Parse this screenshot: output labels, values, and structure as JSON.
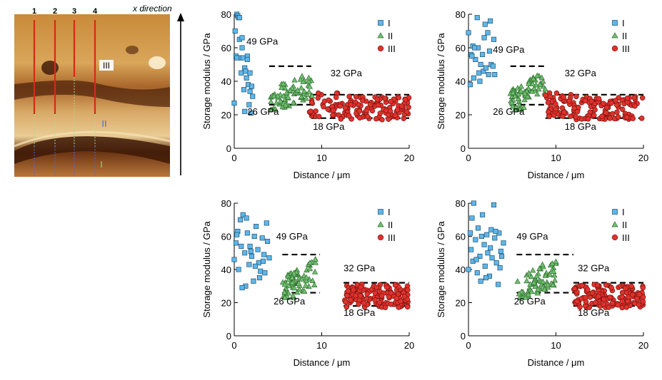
{
  "afm": {
    "direction_label": "x direction",
    "lines": [
      "1",
      "2",
      "3",
      "4"
    ],
    "regions": [
      "III",
      "II",
      "I"
    ],
    "colors": {
      "line": "#d42a1a",
      "region_I": "#7fe07f",
      "region_II": "#3f6fd8",
      "region_III": "#ffffff"
    }
  },
  "shared": {
    "xlabel": "Distance / μm",
    "ylabel": "Storage modulus / GPa",
    "xlim": [
      0,
      20
    ],
    "ylim": [
      0,
      80
    ],
    "xticks": [
      "0",
      "10",
      "20"
    ],
    "yticks": [
      "0",
      "20",
      "40",
      "60",
      "80"
    ],
    "legend": [
      "I",
      "II",
      "III"
    ],
    "colors": {
      "I": "#5fb6e8",
      "II": "#6fc06f",
      "III": "#e0322c"
    }
  },
  "chart_data": [
    {
      "type": "scatter",
      "panel": "top-left",
      "xlabel": "Distance / μm",
      "ylabel": "Storage modulus / GPa",
      "xlim": [
        0,
        20
      ],
      "ylim": [
        0,
        80
      ],
      "legend": [
        "I",
        "II",
        "III"
      ],
      "series": [
        {
          "name": "I",
          "marker": "square",
          "range": [
            0,
            2
          ],
          "x": [
            0.0,
            0.1,
            0.2,
            0.3,
            0.4,
            0.5,
            0.6,
            0.7,
            0.8,
            0.9,
            1.0,
            1.1,
            1.2,
            1.3,
            1.4,
            1.5,
            1.6,
            1.7,
            1.8,
            1.9,
            2.0,
            2.1,
            0.3,
            0.6,
            0.9,
            1.2,
            1.5,
            1.8
          ],
          "y": [
            27,
            70,
            55,
            80,
            79,
            78,
            65,
            54,
            45,
            60,
            54,
            35,
            48,
            46,
            42,
            55,
            38,
            26,
            34,
            21,
            37,
            31,
            54,
            78,
            66,
            22,
            53,
            45
          ]
        },
        {
          "name": "II",
          "marker": "triangle",
          "range": [
            4,
            9
          ],
          "x": [],
          "y": []
        },
        {
          "name": "III",
          "marker": "circle",
          "range": [
            8.6,
            20
          ],
          "x": [],
          "y": []
        }
      ],
      "annotations": [
        "49 GPa",
        "32 GPa",
        "26 GPa",
        "18 GPa"
      ]
    },
    {
      "type": "scatter",
      "panel": "top-right",
      "xlabel": "Distance / μm",
      "ylabel": "Storage modulus / GPa",
      "xlim": [
        0,
        20
      ],
      "ylim": [
        0,
        80
      ],
      "legend": [
        "I",
        "II",
        "III"
      ],
      "series": [
        {
          "name": "I",
          "marker": "square",
          "range": [
            0,
            3
          ],
          "x": [
            0.0,
            0.2,
            0.3,
            0.5,
            0.6,
            0.8,
            1.0,
            1.1,
            1.3,
            1.4,
            1.6,
            1.7,
            1.9,
            2.0,
            2.2,
            2.3,
            2.5,
            2.6,
            2.8,
            3.0,
            0.7,
            1.2,
            1.8,
            2.4,
            2.9,
            0.4
          ],
          "y": [
            69,
            38,
            56,
            61,
            42,
            53,
            78,
            60,
            40,
            50,
            56,
            46,
            74,
            48,
            69,
            44,
            76,
            50,
            49,
            44,
            60,
            45,
            66,
            58,
            65,
            55
          ]
        },
        {
          "name": "II",
          "marker": "triangle",
          "range": [
            4.8,
            8.8
          ],
          "x": [],
          "y": []
        },
        {
          "name": "III",
          "marker": "circle",
          "range": [
            8.8,
            20
          ],
          "x": [],
          "y": []
        }
      ],
      "annotations": [
        "49 GPa",
        "32 GPa",
        "26 GPa",
        "18 GPa"
      ]
    },
    {
      "type": "scatter",
      "panel": "bottom-left",
      "xlabel": "Distance / μm",
      "ylabel": "Storage modulus / GPa",
      "xlim": [
        0,
        20
      ],
      "ylim": [
        0,
        80
      ],
      "legend": [
        "I",
        "II",
        "III"
      ],
      "series": [
        {
          "name": "I",
          "marker": "square",
          "range": [
            0,
            4
          ],
          "x": [
            0.0,
            0.2,
            0.4,
            0.5,
            0.7,
            0.8,
            1.0,
            1.2,
            1.3,
            1.5,
            1.7,
            1.8,
            2.0,
            2.2,
            2.3,
            2.5,
            2.7,
            2.8,
            3.0,
            3.2,
            3.3,
            3.5,
            3.7,
            3.8,
            4.0,
            0.3,
            0.9,
            1.4,
            1.9,
            2.4,
            2.9,
            3.4
          ],
          "y": [
            46,
            56,
            63,
            40,
            70,
            54,
            73,
            50,
            30,
            62,
            43,
            54,
            48,
            33,
            60,
            66,
            52,
            44,
            39,
            59,
            45,
            38,
            68,
            57,
            47,
            61,
            29,
            71,
            51,
            42,
            35,
            49
          ]
        },
        {
          "name": "II",
          "marker": "triangle",
          "range": [
            5.5,
            9.5
          ],
          "x": [],
          "y": []
        },
        {
          "name": "III",
          "marker": "circle",
          "range": [
            12.5,
            20
          ],
          "x": [],
          "y": []
        }
      ],
      "annotations": [
        "49 GPa",
        "32 GPa",
        "26 GPa",
        "18 GPa"
      ]
    },
    {
      "type": "scatter",
      "panel": "bottom-right",
      "xlabel": "Distance / μm",
      "ylabel": "Storage modulus / GPa",
      "xlim": [
        0,
        20
      ],
      "ylim": [
        0,
        80
      ],
      "legend": [
        "I",
        "II",
        "III"
      ],
      "series": [
        {
          "name": "I",
          "marker": "square",
          "range": [
            0,
            4
          ],
          "x": [
            0.0,
            0.2,
            0.3,
            0.5,
            0.6,
            0.8,
            1.0,
            1.1,
            1.3,
            1.4,
            1.6,
            1.8,
            1.9,
            2.1,
            2.2,
            2.4,
            2.6,
            2.7,
            2.9,
            3.0,
            3.2,
            3.4,
            3.5,
            3.7,
            3.8,
            4.0,
            0.4,
            0.9,
            1.5,
            2.0,
            2.5,
            3.1,
            3.6
          ],
          "y": [
            40,
            62,
            52,
            45,
            80,
            58,
            38,
            65,
            48,
            33,
            73,
            55,
            42,
            61,
            50,
            36,
            64,
            47,
            79,
            59,
            44,
            31,
            62,
            51,
            48,
            56,
            71,
            46,
            60,
            35,
            53,
            63,
            41
          ]
        },
        {
          "name": "II",
          "marker": "triangle",
          "range": [
            5.5,
            10
          ],
          "x": [],
          "y": []
        },
        {
          "name": "III",
          "marker": "circle",
          "range": [
            12,
            20
          ],
          "x": [],
          "y": []
        }
      ],
      "annotations": [
        "49 GPa",
        "32 GPa",
        "26 GPa",
        "18 GPa"
      ]
    }
  ]
}
